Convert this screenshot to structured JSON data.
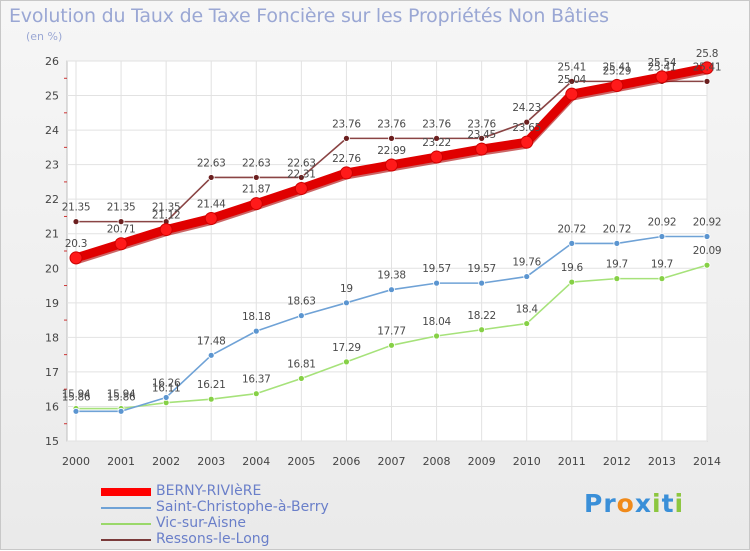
{
  "title": "Evolution du Taux de Taxe Foncière sur les Propriétés Non Bâties",
  "unit_label": "(en %)",
  "logo": {
    "text": "Proxiti",
    "letters": [
      {
        "ch": "P",
        "color": "#3a8fd8"
      },
      {
        "ch": "r",
        "color": "#3a8fd8"
      },
      {
        "ch": "o",
        "color": "#f08a1a"
      },
      {
        "ch": "x",
        "color": "#3a8fd8"
      },
      {
        "ch": "i",
        "color": "#8cc63f"
      },
      {
        "ch": "t",
        "color": "#3a8fd8"
      },
      {
        "ch": "i",
        "color": "#8cc63f"
      }
    ]
  },
  "chart_data": {
    "type": "line",
    "title": "Evolution du Taux de Taxe Foncière sur les Propriétés Non Bâties",
    "ylabel": "(en %)",
    "xlabel": "",
    "x": [
      "2000",
      "2001",
      "2002",
      "2003",
      "2004",
      "2005",
      "2006",
      "2007",
      "2008",
      "2009",
      "2010",
      "2011",
      "2012",
      "2013",
      "2014"
    ],
    "ylim": [
      15,
      26
    ],
    "yticks": [
      "15",
      "16",
      "17",
      "18",
      "19",
      "20",
      "21",
      "22",
      "23",
      "24",
      "25",
      "26"
    ],
    "grid": true,
    "legend_position": "bottom",
    "series": [
      {
        "name": "BERNY-RIVIèRE",
        "color": "#ff0000",
        "values": [
          20.3,
          20.71,
          21.12,
          21.44,
          21.87,
          22.31,
          22.76,
          22.99,
          23.22,
          23.45,
          23.65,
          25.04,
          25.29,
          25.54,
          25.8
        ],
        "labels": [
          "20.3",
          "20.71",
          "21.12",
          "21.44",
          "21.87",
          "22.31",
          "22.76",
          "22.99",
          "23.22",
          "23.45",
          "23.65",
          "25.04",
          "25.29",
          "25.54",
          "25.8"
        ]
      },
      {
        "name": "Saint-Christophe-à-Berry",
        "color": "#6fa2d6",
        "values": [
          15.86,
          15.86,
          16.26,
          17.48,
          18.18,
          18.63,
          19,
          19.38,
          19.57,
          19.57,
          19.76,
          20.72,
          20.72,
          20.92,
          20.92
        ],
        "labels": [
          "15.86",
          "15.86",
          "16.26",
          "17.48",
          "18.18",
          "18.63",
          "19",
          "19.38",
          "19.57",
          "19.57",
          "19.76",
          "20.72",
          "20.72",
          "20.92",
          "20.92"
        ]
      },
      {
        "name": "Vic-sur-Aisne",
        "color": "#9ad86a",
        "values": [
          15.94,
          15.94,
          16.11,
          16.21,
          16.37,
          16.81,
          17.29,
          17.77,
          18.04,
          18.22,
          18.4,
          19.6,
          19.7,
          19.7,
          20.09
        ],
        "labels": [
          "15.94",
          "15.94",
          "16.11",
          "16.21",
          "16.37",
          "16.81",
          "17.29",
          "17.77",
          "18.04",
          "18.22",
          "18.4",
          "19.6",
          "19.7",
          "19.7",
          "20.09"
        ]
      },
      {
        "name": "Ressons-le-Long",
        "color": "#7a3a3a",
        "values": [
          21.35,
          21.35,
          21.35,
          22.63,
          22.63,
          22.63,
          23.76,
          23.76,
          23.76,
          23.76,
          24.23,
          25.41,
          25.41,
          25.41,
          25.41
        ],
        "labels": [
          "21.35",
          "21.35",
          "21.35",
          "22.63",
          "22.63",
          "22.63",
          "23.76",
          "23.76",
          "23.76",
          "23.76",
          "24.23",
          "25.41",
          "25.41",
          "25.41",
          "25.41"
        ]
      }
    ]
  }
}
